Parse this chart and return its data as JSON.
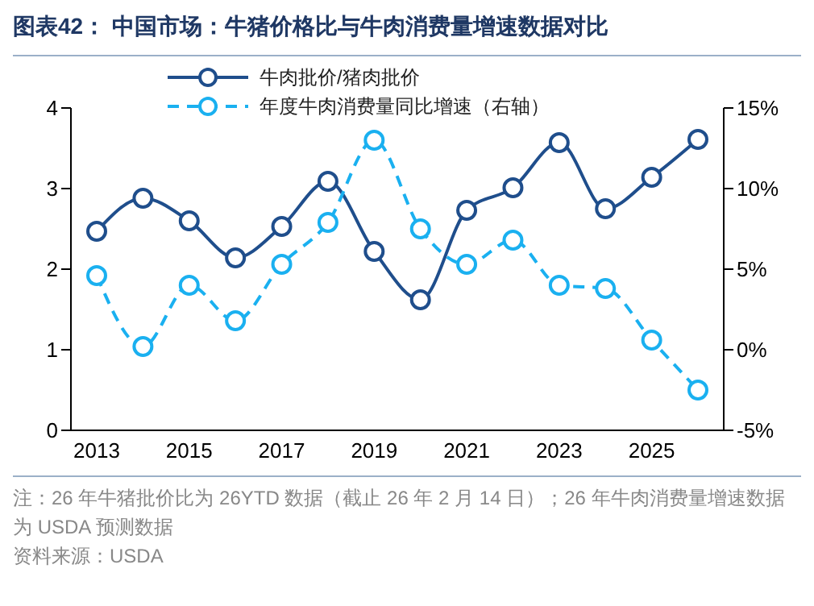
{
  "chart_data": {
    "type": "line",
    "title": "图表42：  中国市场：牛猪价格比与牛肉消费量增速数据对比",
    "categories": [
      "2013",
      null,
      "2015",
      null,
      "2017",
      null,
      "2019",
      null,
      "2021",
      null,
      "2023",
      null,
      "2025",
      null
    ],
    "series": [
      {
        "name": "牛肉批价/猪肉批价",
        "color": "#1f4e8c",
        "line_style": "solid",
        "values": [
          2.47,
          2.88,
          2.6,
          2.14,
          2.53,
          3.09,
          2.22,
          1.62,
          2.73,
          3.01,
          3.57,
          2.75,
          3.14,
          3.61
        ]
      },
      {
        "name": "年度牛肉消费量同比增速（右轴）",
        "color": "#1ab0f0",
        "line_style": "dashed",
        "axis": "y2",
        "values": [
          4.6,
          0.2,
          4.0,
          1.8,
          5.3,
          7.9,
          13.0,
          7.5,
          5.3,
          6.8,
          4.0,
          3.8,
          0.6,
          -2.5
        ]
      }
    ],
    "ylim": [
      0,
      4
    ],
    "yticks": [
      0,
      1,
      2,
      3,
      4
    ],
    "y2lim": [
      -5,
      15
    ],
    "y2ticks": [
      {
        "value": -5,
        "label": "-5%"
      },
      {
        "value": 0,
        "label": "0%"
      },
      {
        "value": 5,
        "label": "5%"
      },
      {
        "value": 10,
        "label": "10%"
      },
      {
        "value": 15,
        "label": "15%"
      }
    ],
    "marker": "circle",
    "legend": "top",
    "annotations": [
      "注：26 年牛猪批价比为 26YTD 数据（截止 26 年 2 月 14 日）；26 年牛肉消费量增速数据为 USDA 预测数据",
      "资料来源：USDA"
    ]
  }
}
